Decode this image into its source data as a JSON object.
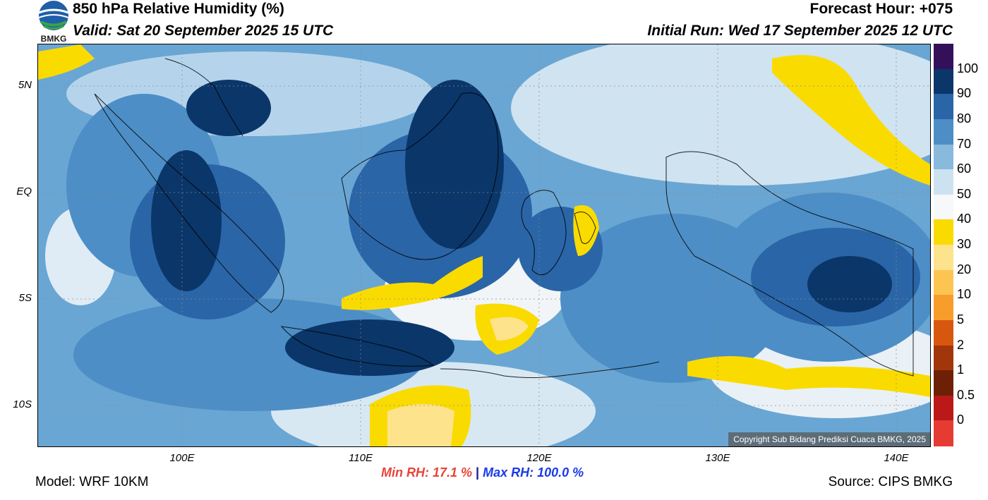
{
  "header": {
    "title": "850 hPa Relative Humidity (%)",
    "valid": "Valid: Sat 20 September 2025 15 UTC",
    "forecast_hour": "Forecast Hour: +075",
    "initial_run": "Initial Run: Wed 17 September 2025 12 UTC",
    "logo_text": "BMKG"
  },
  "map": {
    "lat_labels": [
      "5N",
      "EQ",
      "5S",
      "10S"
    ],
    "lon_labels": [
      "100E",
      "110E",
      "120E",
      "130E",
      "140E"
    ],
    "copyright": "Copyright Sub Bidang Prediksi Cuaca BMKG, 2025"
  },
  "colorbar": {
    "labels": [
      "100",
      "90",
      "80",
      "70",
      "60",
      "50",
      "40",
      "30",
      "20",
      "10",
      "5",
      "2",
      "1",
      "0.5",
      "0"
    ],
    "colors": [
      "#35105a",
      "#0b3669",
      "#2a65a7",
      "#4d8ec6",
      "#8ab9de",
      "#cde2f0",
      "#f6f8fa",
      "#fadb00",
      "#fde38c",
      "#fcc552",
      "#f79d2c",
      "#d8570f",
      "#a2360b",
      "#6e2006",
      "#bb1818",
      "#e53b33"
    ]
  },
  "footer": {
    "model": "Model: WRF 10KM",
    "source": "Source: CIPS BMKG",
    "min_rh": "Min RH:  17.1 %",
    "separator": " | ",
    "max_rh": "Max RH: 100.0 %"
  }
}
